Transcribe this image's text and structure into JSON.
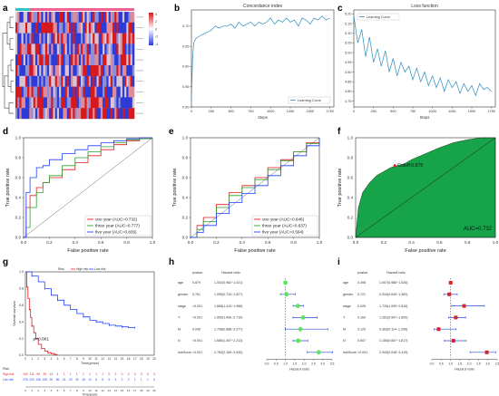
{
  "panel_labels": [
    "a",
    "b",
    "c",
    "d",
    "e",
    "f",
    "g",
    "h",
    "i"
  ],
  "colors": {
    "red": "#e41a1c",
    "green": "#2ca02c",
    "blue": "#1f3fff",
    "concordance": "#2b8cbe",
    "heat_high": "#d7191c",
    "heat_low": "#2c3bd6",
    "roc_fill": "#16a34a",
    "high_risk": "#e41a1c",
    "low_risk": "#1f3fff",
    "forest_green": "#5ee35e",
    "forest_red": "#d9232b"
  },
  "chart_data": [
    {
      "panel": "a",
      "type": "heatmap",
      "rows": 10,
      "row_clusters": 3,
      "legend_ticks": [
        "4",
        "2",
        "0",
        "-2",
        "-4"
      ]
    },
    {
      "panel": "b",
      "type": "line",
      "title": "Concordance index",
      "xlabel": "Steps",
      "ylabel": "",
      "xlim": [
        0,
        1800
      ],
      "ylim": [
        0.5,
        0.74
      ],
      "xticks": [
        "0",
        "250",
        "500",
        "750",
        "1000",
        "1250",
        "1500",
        "1750"
      ],
      "yticks": [
        "0.50",
        "0.55",
        "0.60",
        "0.65",
        "0.70"
      ],
      "series": [
        {
          "name": "Learning Curve",
          "x": [
            0,
            15,
            30,
            60,
            100,
            150,
            200,
            250,
            300,
            350,
            400,
            450,
            500,
            550,
            600,
            650,
            700,
            750,
            800,
            850,
            900,
            950,
            1000,
            1050,
            1100,
            1150,
            1200,
            1250,
            1300,
            1350,
            1400,
            1450,
            1500,
            1550,
            1600,
            1650,
            1700,
            1750
          ],
          "y": [
            0.52,
            0.62,
            0.66,
            0.67,
            0.675,
            0.68,
            0.685,
            0.69,
            0.7,
            0.695,
            0.7,
            0.7,
            0.705,
            0.695,
            0.71,
            0.7,
            0.705,
            0.71,
            0.7,
            0.71,
            0.705,
            0.71,
            0.72,
            0.705,
            0.715,
            0.71,
            0.72,
            0.71,
            0.715,
            0.7,
            0.72,
            0.715,
            0.705,
            0.72,
            0.715,
            0.725,
            0.715,
            0.72
          ]
        }
      ],
      "legend": "bottom-right"
    },
    {
      "panel": "c",
      "type": "line",
      "title": "Loss function",
      "xlabel": "Steps",
      "ylabel": "",
      "xlim": [
        0,
        1800
      ],
      "ylim": [
        4.72,
        5.22
      ],
      "xticks": [
        "0",
        "250",
        "500",
        "750",
        "1000",
        "1250",
        "1500",
        "1750"
      ],
      "yticks": [
        "4.75",
        "4.80",
        "4.85",
        "4.90",
        "4.95",
        "5.00",
        "5.05",
        "5.10",
        "5.15",
        "5.20"
      ],
      "series": [
        {
          "name": "Learning Curve",
          "x": [
            0,
            50,
            100,
            150,
            200,
            250,
            300,
            350,
            400,
            450,
            500,
            550,
            600,
            650,
            700,
            750,
            800,
            850,
            900,
            950,
            1000,
            1050,
            1100,
            1150,
            1200,
            1250,
            1300,
            1350,
            1400,
            1450,
            1500,
            1550,
            1600,
            1650,
            1700,
            1750
          ],
          "y": [
            5.19,
            5.05,
            5.12,
            4.98,
            5.08,
            4.95,
            5.02,
            4.93,
            5.01,
            4.9,
            4.97,
            4.88,
            4.95,
            4.9,
            4.93,
            4.86,
            4.92,
            4.85,
            4.9,
            4.83,
            4.88,
            4.82,
            4.87,
            4.8,
            4.86,
            4.82,
            4.85,
            4.79,
            4.84,
            4.8,
            4.83,
            4.78,
            4.84,
            4.81,
            4.82,
            4.8
          ]
        }
      ],
      "legend": "top-left"
    },
    {
      "panel": "d",
      "type": "line",
      "xlabel": "False positive rate",
      "ylabel": "True positive rate",
      "xlim": [
        0,
        1
      ],
      "ylim": [
        0,
        1
      ],
      "ticks": [
        "0.0",
        "0.2",
        "0.4",
        "0.6",
        "0.8",
        "1.0"
      ],
      "series": [
        {
          "name": "one year (AUC=0.732)",
          "color": "#e41a1c",
          "x": [
            0,
            0.02,
            0.05,
            0.1,
            0.15,
            0.2,
            0.3,
            0.4,
            0.5,
            0.6,
            0.7,
            0.8,
            0.9,
            1.0
          ],
          "y": [
            0,
            0.3,
            0.42,
            0.5,
            0.55,
            0.6,
            0.68,
            0.75,
            0.82,
            0.88,
            0.93,
            0.97,
            0.99,
            1.0
          ]
        },
        {
          "name": "three year (AUC=0.777)",
          "color": "#2ca02c",
          "x": [
            0,
            0.02,
            0.05,
            0.1,
            0.15,
            0.2,
            0.3,
            0.4,
            0.5,
            0.6,
            0.7,
            0.8,
            0.9,
            1.0
          ],
          "y": [
            0,
            0.1,
            0.3,
            0.45,
            0.55,
            0.62,
            0.72,
            0.8,
            0.86,
            0.91,
            0.95,
            0.98,
            0.99,
            1.0
          ]
        },
        {
          "name": "five year (AUC=0.836)",
          "color": "#1f3fff",
          "x": [
            0,
            0.02,
            0.05,
            0.1,
            0.15,
            0.2,
            0.3,
            0.4,
            0.5,
            0.6,
            0.7,
            0.8,
            0.9,
            1.0
          ],
          "y": [
            0,
            0.45,
            0.6,
            0.7,
            0.72,
            0.78,
            0.84,
            0.88,
            0.92,
            0.95,
            0.97,
            0.99,
            1.0,
            1.0
          ]
        }
      ],
      "legend": "bottom-right"
    },
    {
      "panel": "e",
      "type": "line",
      "xlabel": "False positive rate",
      "ylabel": "True positive rate",
      "xlim": [
        0,
        1
      ],
      "ylim": [
        0,
        1
      ],
      "ticks": [
        "0.0",
        "0.2",
        "0.4",
        "0.6",
        "0.8",
        "1.0"
      ],
      "series": [
        {
          "name": "one year (AUC=0.646)",
          "color": "#e41a1c",
          "x": [
            0,
            0.05,
            0.1,
            0.2,
            0.3,
            0.4,
            0.5,
            0.6,
            0.7,
            0.8,
            0.9,
            1.0
          ],
          "y": [
            0,
            0.12,
            0.2,
            0.33,
            0.45,
            0.52,
            0.6,
            0.7,
            0.78,
            0.86,
            0.95,
            1.0
          ]
        },
        {
          "name": "three year (AUC=0.637)",
          "color": "#2ca02c",
          "x": [
            0,
            0.05,
            0.1,
            0.2,
            0.3,
            0.4,
            0.5,
            0.6,
            0.7,
            0.8,
            0.9,
            1.0
          ],
          "y": [
            0,
            0.08,
            0.16,
            0.3,
            0.42,
            0.5,
            0.58,
            0.68,
            0.77,
            0.86,
            0.94,
            1.0
          ]
        },
        {
          "name": "five year (AUC=0.594)",
          "color": "#1f3fff",
          "x": [
            0,
            0.05,
            0.1,
            0.2,
            0.3,
            0.4,
            0.5,
            0.6,
            0.7,
            0.8,
            0.9,
            1.0
          ],
          "y": [
            0,
            0.05,
            0.12,
            0.24,
            0.35,
            0.44,
            0.52,
            0.62,
            0.72,
            0.82,
            0.92,
            1.0
          ]
        }
      ],
      "legend": "bottom-right"
    },
    {
      "panel": "f",
      "type": "area",
      "xlabel": "False positive rate",
      "ylabel": "True positive rate",
      "xlim": [
        0,
        1
      ],
      "ylim": [
        0,
        1
      ],
      "ticks": [
        "0.0",
        "0.2",
        "0.4",
        "0.6",
        "0.8",
        "1.0"
      ],
      "series": [
        {
          "name": "",
          "x": [
            0,
            0.02,
            0.05,
            0.1,
            0.15,
            0.2,
            0.25,
            0.3,
            0.35,
            0.4,
            0.5,
            0.6,
            0.7,
            0.8,
            0.9,
            1.0
          ],
          "y": [
            0,
            0.3,
            0.45,
            0.55,
            0.62,
            0.66,
            0.7,
            0.72,
            0.74,
            0.78,
            0.84,
            0.9,
            0.95,
            0.98,
            1.0,
            1.0
          ]
        }
      ],
      "cutoff_point": {
        "x": 0.28,
        "y": 0.72
      },
      "cutoff_label": "Cutoff:0.875",
      "auc_label": "AUC=0.732"
    },
    {
      "panel": "g",
      "type": "line",
      "ylabel": "Overall survival",
      "xlabel": "Time(years)",
      "xlim": [
        0,
        20
      ],
      "ylim": [
        0,
        1
      ],
      "yticks": [
        "0.0",
        "0.2",
        "0.4",
        "0.6",
        "0.8",
        "1.0"
      ],
      "xticks": [
        "0",
        "1",
        "2",
        "3",
        "4",
        "5",
        "6",
        "7",
        "8",
        "9",
        "10",
        "11",
        "12",
        "13",
        "14",
        "15",
        "16",
        "17",
        "18",
        "19",
        "20"
      ],
      "pvalue": "p<0.001",
      "legend_items": [
        "Risk",
        "High risk",
        "Low risk"
      ],
      "series": [
        {
          "name": "High risk",
          "color": "#e41a1c",
          "x": [
            0,
            0.2,
            0.4,
            0.6,
            0.8,
            1,
            1.3,
            1.6,
            2,
            2.5,
            3,
            3.5,
            4,
            4.5,
            5
          ],
          "y": [
            1,
            0.82,
            0.68,
            0.55,
            0.45,
            0.35,
            0.27,
            0.2,
            0.13,
            0.08,
            0.05,
            0.03,
            0.02,
            0.01,
            0.01
          ]
        },
        {
          "name": "Low risk",
          "color": "#1f3fff",
          "x": [
            0,
            1,
            2,
            3,
            4,
            5,
            6,
            7,
            8,
            9,
            10,
            11,
            12,
            13,
            14,
            15,
            16,
            17
          ],
          "y": [
            1,
            0.95,
            0.88,
            0.8,
            0.72,
            0.66,
            0.6,
            0.55,
            0.5,
            0.46,
            0.42,
            0.4,
            0.38,
            0.36,
            0.35,
            0.34,
            0.33,
            0.33
          ]
        }
      ],
      "risk_table": {
        "title": "Risk",
        "rows": [
          {
            "label": "High risk",
            "counts": [
              "100",
              "111",
              "55",
              "30",
              "13",
              "4",
              "1",
              "1",
              "1",
              "1",
              "1",
              "1",
              "1",
              "0",
              "0",
              "0",
              "0",
              "0",
              "0",
              "0",
              "0"
            ]
          },
          {
            "label": "Low risk",
            "counts": [
              "276",
              "220",
              "138",
              "108",
              "90",
              "56",
              "41",
              "33",
              "25",
              "18",
              "12",
              "8",
              "6",
              "5",
              "3",
              "2",
              "2",
              "1",
              "1",
              "1",
              "0"
            ]
          }
        ]
      }
    },
    {
      "panel": "h",
      "type": "forest",
      "header": {
        "pvalue": "pvalue",
        "hr": "Hazard ratio"
      },
      "xlabel": "Hazard ratio",
      "xticks": [
        "0.0",
        "0.5",
        "1.0",
        "1.5",
        "2.0",
        "2.5",
        "3.0",
        "3.5"
      ],
      "xlim": [
        0,
        3.5
      ],
      "rows": [
        {
          "name": "age",
          "pvalue": "0.879",
          "hr_text": "1.002(0.982~1.021)",
          "hr": 1.002,
          "lo": 0.982,
          "hi": 1.021
        },
        {
          "name": "gender",
          "pvalue": "0.761",
          "hr_text": "1.059(0.734~1.527)",
          "hr": 1.059,
          "lo": 0.734,
          "hi": 1.527
        },
        {
          "name": "stage",
          "pvalue": "<0.001",
          "hr_text": "1.668(1.413~1.968)",
          "hr": 1.668,
          "lo": 1.413,
          "hi": 1.968
        },
        {
          "name": "T",
          "pvalue": "<0.001",
          "hr_text": "1.950(1.406~2.710)",
          "hr": 1.95,
          "lo": 1.406,
          "hi": 2.71
        },
        {
          "name": "M",
          "pvalue": "0.006",
          "hr_text": "1.798(0.988~3.277)",
          "hr": 1.798,
          "lo": 0.988,
          "hi": 3.277
        },
        {
          "name": "N",
          "pvalue": "<0.001",
          "hr_text": "1.685(1.407~2.213)",
          "hr": 1.685,
          "lo": 1.407,
          "hi": 2.213
        },
        {
          "name": "riskScore",
          "pvalue": "<0.001",
          "hr_text": "2.784(2.169~3.530)",
          "hr": 2.784,
          "lo": 2.169,
          "hi": 3.53
        }
      ]
    },
    {
      "panel": "i",
      "type": "forest",
      "header": {
        "pvalue": "pvalue",
        "hr": "Hazard ratio"
      },
      "xlabel": "Hazard ratio",
      "xticks": [
        "0.0",
        "0.5",
        "1.0",
        "1.5",
        "2.0",
        "2.5",
        "3.0",
        "3.5"
      ],
      "xlim": [
        0,
        3.5
      ],
      "rows": [
        {
          "name": "age",
          "pvalue": "0.498",
          "hr_text": "1.007(0.988~1.026)",
          "hr": 1.007,
          "lo": 0.988,
          "hi": 1.026
        },
        {
          "name": "gender",
          "pvalue": "0.721",
          "hr_text": "0.934(0.640~1.362)",
          "hr": 0.934,
          "lo": 0.64,
          "hi": 1.362
        },
        {
          "name": "stage",
          "pvalue": "0.026",
          "hr_text": "1.726(1.059~2.815)",
          "hr": 1.726,
          "lo": 1.059,
          "hi": 2.815
        },
        {
          "name": "T",
          "pvalue": "0.160",
          "hr_text": "1.281(0.907~1.809)",
          "hr": 1.281,
          "lo": 0.907,
          "hi": 1.809
        },
        {
          "name": "M",
          "pvalue": "0.120",
          "hr_text": "0.363(0.114~1.295)",
          "hr": 0.363,
          "lo": 0.114,
          "hi": 1.295
        },
        {
          "name": "N",
          "pvalue": "0.607",
          "hr_text": "1.155(0.667~1.817)",
          "hr": 1.155,
          "lo": 0.667,
          "hi": 1.817
        },
        {
          "name": "riskScore",
          "pvalue": "<0.001",
          "hr_text": "2.943(2.048~3.419)",
          "hr": 2.943,
          "lo": 2.048,
          "hi": 3.419
        }
      ]
    }
  ]
}
